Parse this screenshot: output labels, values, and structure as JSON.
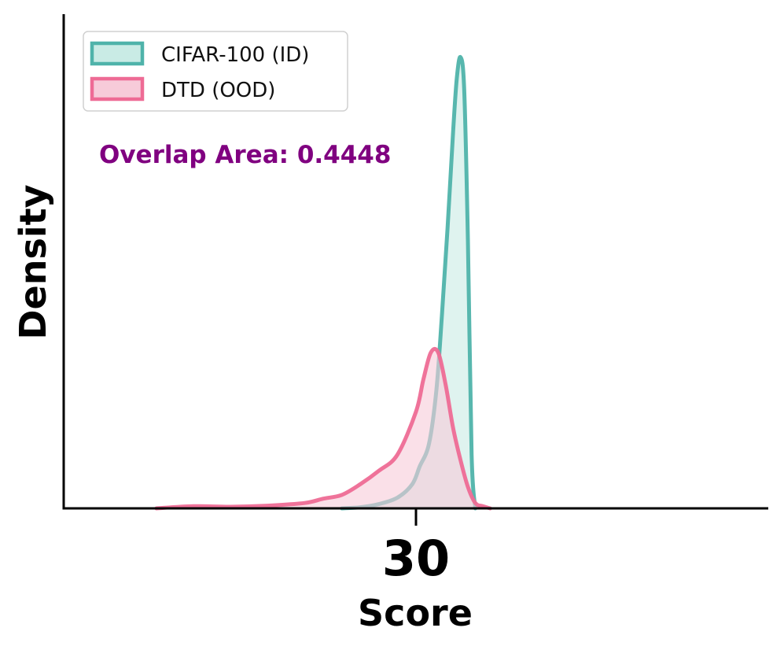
{
  "chart_data": {
    "type": "area",
    "xlabel": "Score",
    "ylabel": "Density",
    "x_ticks": [
      30
    ],
    "xlim": [
      20.5,
      39.5
    ],
    "ylim": [
      0,
      0.92
    ],
    "y_ticks_shown": false,
    "grid": false,
    "legend_placement": "top-left",
    "annotation": {
      "text": "Overlap Area: 0.4448",
      "color": "#800080"
    },
    "series": [
      {
        "name": "CIFAR-100 (ID)",
        "color": "#4fb3aa",
        "fill": "#c9ebe5",
        "x": [
          28.0,
          28.5,
          29.0,
          29.5,
          29.9,
          30.1,
          30.35,
          30.55,
          30.7,
          30.85,
          31.0,
          31.1,
          31.2,
          31.3,
          31.4,
          31.5,
          31.6
        ],
        "y": [
          0.0,
          0.002,
          0.008,
          0.02,
          0.045,
          0.078,
          0.12,
          0.22,
          0.36,
          0.52,
          0.7,
          0.8,
          0.84,
          0.78,
          0.5,
          0.1,
          0.0
        ]
      },
      {
        "name": "DTD (OOD)",
        "color": "#ee6b95",
        "fill": "#f7cbd9",
        "x": [
          23.0,
          24.0,
          25.0,
          26.0,
          27.0,
          27.5,
          28.0,
          28.5,
          29.0,
          29.5,
          30.0,
          30.2,
          30.4,
          30.6,
          30.8,
          31.0,
          31.2,
          31.4,
          31.6,
          31.8,
          32.0
        ],
        "y": [
          0.0,
          0.004,
          0.003,
          0.005,
          0.01,
          0.018,
          0.025,
          0.045,
          0.07,
          0.1,
          0.18,
          0.24,
          0.29,
          0.29,
          0.23,
          0.15,
          0.09,
          0.04,
          0.01,
          0.004,
          0.0
        ]
      }
    ]
  }
}
